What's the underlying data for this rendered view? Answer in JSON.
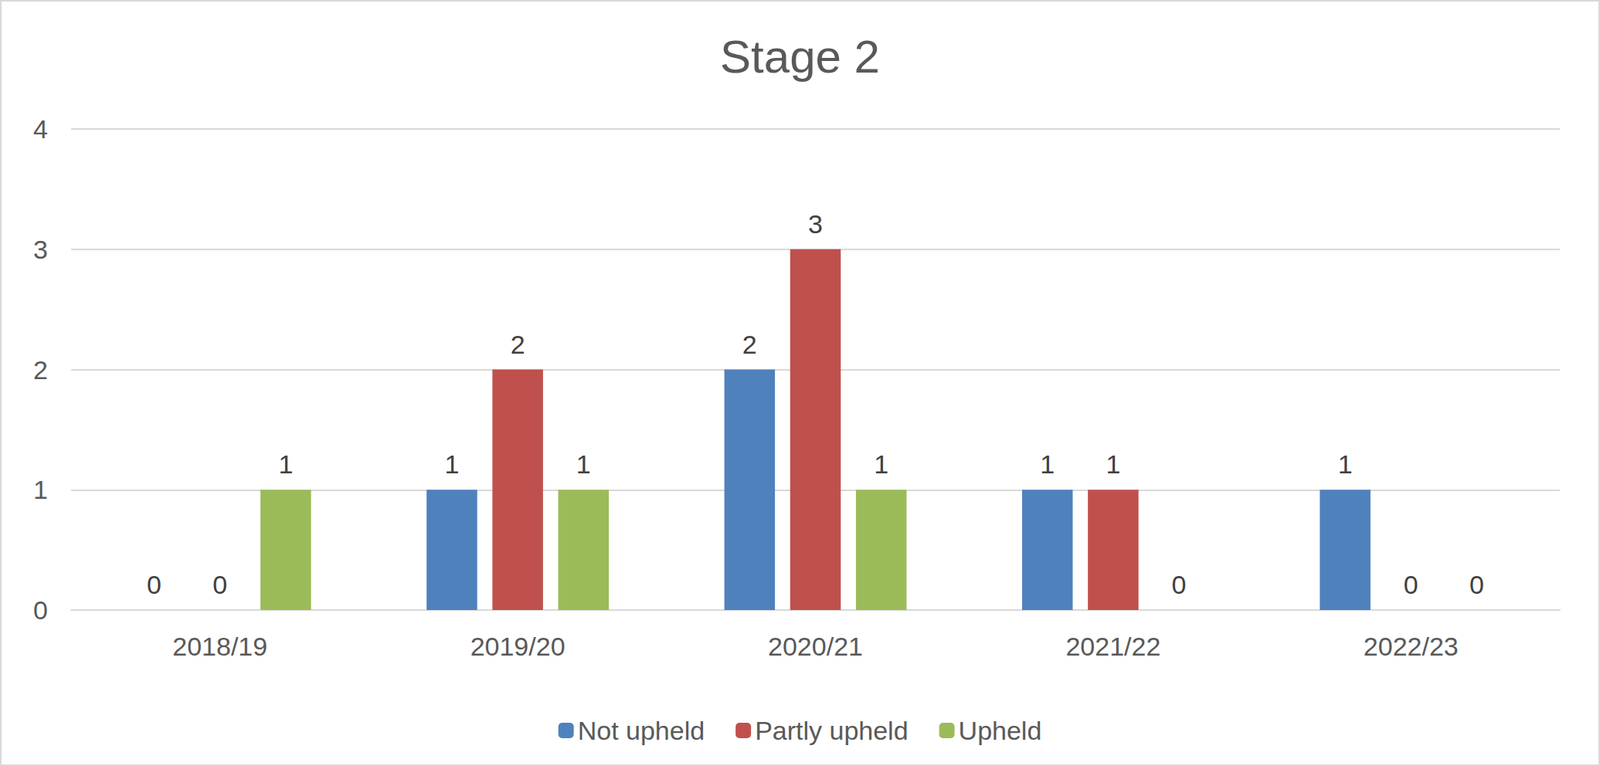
{
  "chart_data": {
    "type": "bar",
    "title": "Stage 2",
    "categories": [
      "2018/19",
      "2019/20",
      "2020/21",
      "2021/22",
      "2022/23"
    ],
    "series": [
      {
        "name": "Not upheld",
        "color": "#4f81bd",
        "values": [
          0,
          1,
          2,
          1,
          1
        ]
      },
      {
        "name": "Partly upheld",
        "color": "#c0504d",
        "values": [
          0,
          2,
          3,
          1,
          0
        ]
      },
      {
        "name": "Upheld",
        "color": "#9bbb59",
        "values": [
          1,
          1,
          1,
          0,
          0
        ]
      }
    ],
    "ylim": [
      0,
      4
    ],
    "yticks": [
      0,
      1,
      2,
      3,
      4
    ],
    "grid": true,
    "legend": "bottom",
    "data_labels": true
  }
}
